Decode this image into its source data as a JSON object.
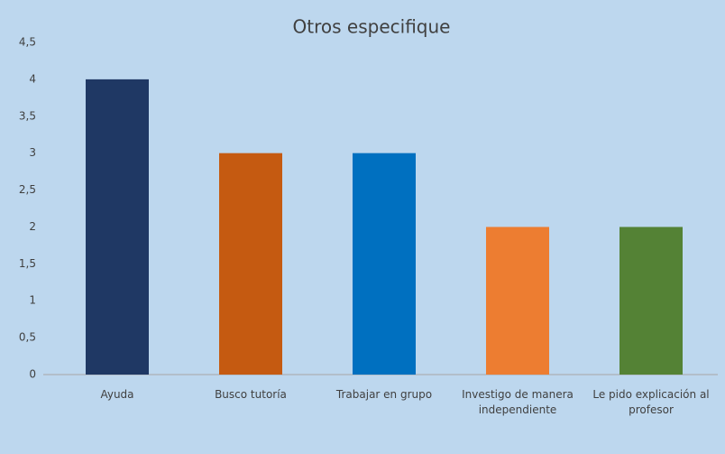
{
  "chart_data": {
    "type": "bar",
    "title": "Otros especifique",
    "categories": [
      "Ayuda",
      "Busco tutoría",
      "Trabajar en grupo",
      "Investigo de manera independiente",
      "Le pido explicación al profesor"
    ],
    "values": [
      4,
      3,
      3,
      2,
      2
    ],
    "colors": [
      "#1f3864",
      "#c55a11",
      "#0070c0",
      "#ed7d31",
      "#548235"
    ],
    "ylim": [
      0,
      4.5
    ],
    "yticks": [
      0,
      {
        "value": 0.5,
        "label": "0,5"
      },
      1,
      {
        "value": 1.5,
        "label": "1,5"
      },
      2,
      {
        "value": 2.5,
        "label": "2,5"
      },
      3,
      {
        "value": 3.5,
        "label": "3,5"
      },
      4,
      {
        "value": 4.5,
        "label": "4,5"
      }
    ],
    "grid": false
  }
}
